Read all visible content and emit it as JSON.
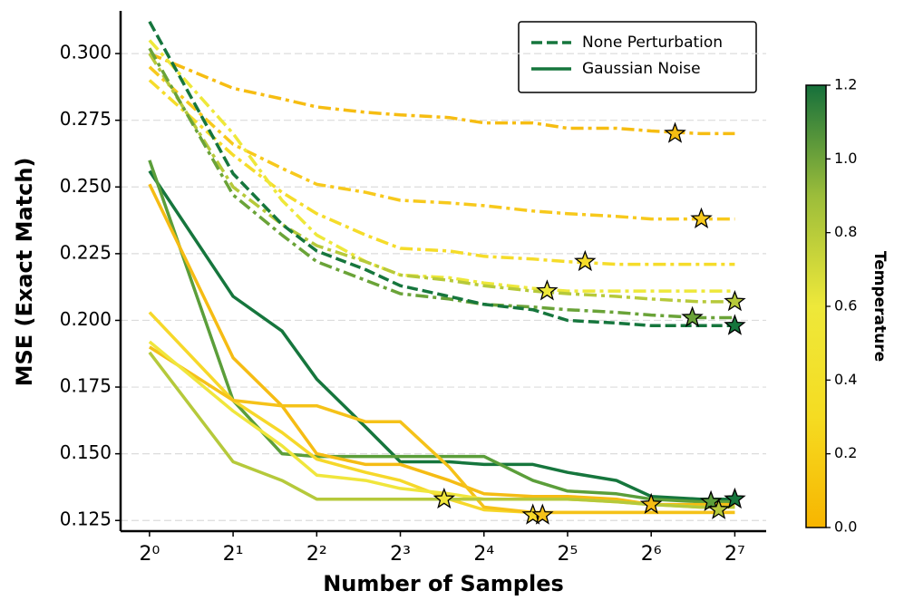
{
  "chart_data": {
    "type": "line",
    "xlabel": "Number of Samples",
    "ylabel": "MSE (Exact Match)",
    "log_x": true,
    "log_base": 2,
    "grid": true,
    "x": [
      1,
      2,
      3,
      4,
      6,
      8,
      12,
      16,
      24,
      32,
      48,
      64,
      96,
      128
    ],
    "xlim": [
      0.787,
      166
    ],
    "xticks": [
      {
        "value": 1,
        "label": "2⁰"
      },
      {
        "value": 2,
        "label": "2¹"
      },
      {
        "value": 4,
        "label": "2²"
      },
      {
        "value": 8,
        "label": "2³"
      },
      {
        "value": 16,
        "label": "2⁴"
      },
      {
        "value": 32,
        "label": "2⁵"
      },
      {
        "value": 64,
        "label": "2⁶"
      },
      {
        "value": 128,
        "label": "2⁷"
      }
    ],
    "ylim": [
      0.121,
      0.316
    ],
    "yticks": [
      0.125,
      {
        "value": 0.15,
        "label": "0.150"
      },
      0.175,
      {
        "value": 0.2,
        "label": "0.200"
      },
      0.225,
      {
        "value": 0.25,
        "label": "0.250"
      },
      0.275,
      {
        "value": 0.3,
        "label": "0.300"
      }
    ],
    "legend": [
      {
        "label": "None Perturbation",
        "style": "dashed",
        "color": "#16763d"
      },
      {
        "label": "Gaussian Noise",
        "style": "solid",
        "color": "#16763d"
      }
    ],
    "series": [
      {
        "color": "#f6bd12",
        "style": "dashdot",
        "values": [
          0.3,
          0.287,
          0.283,
          0.28,
          0.278,
          0.277,
          0.276,
          0.274,
          0.274,
          0.272,
          0.272,
          0.271,
          0.27,
          0.27
        ],
        "marker": {
          "x": 78,
          "y": 0.27
        }
      },
      {
        "color": "#f7c91c",
        "style": "dashdot",
        "values": [
          0.295,
          0.266,
          0.257,
          0.251,
          0.248,
          0.245,
          0.244,
          0.243,
          0.241,
          0.24,
          0.239,
          0.238,
          0.238,
          0.238
        ],
        "marker": {
          "x": 97,
          "y": 0.238
        }
      },
      {
        "color": "#f5dc2a",
        "style": "dashdot",
        "values": [
          0.29,
          0.262,
          0.248,
          0.24,
          0.232,
          0.227,
          0.226,
          0.224,
          0.223,
          0.222,
          0.221,
          0.221,
          0.221,
          0.221
        ],
        "marker": {
          "x": 37,
          "y": 0.222
        }
      },
      {
        "color": "#eee83a",
        "style": "dashdot",
        "values": [
          0.305,
          0.27,
          0.245,
          0.232,
          0.222,
          0.217,
          0.216,
          0.214,
          0.212,
          0.211,
          0.211,
          0.211,
          0.211,
          0.211
        ],
        "marker": {
          "x": 27,
          "y": 0.211
        }
      },
      {
        "color": "#b6c93a",
        "style": "dashdot",
        "values": [
          0.3,
          0.25,
          0.236,
          0.228,
          0.222,
          0.217,
          0.215,
          0.213,
          0.211,
          0.21,
          0.209,
          0.208,
          0.207,
          0.207
        ],
        "marker": {
          "x": 128,
          "y": 0.207
        }
      },
      {
        "color": "#6aa338",
        "style": "dashdot",
        "values": [
          0.302,
          0.247,
          0.232,
          0.222,
          0.215,
          0.21,
          0.208,
          0.206,
          0.205,
          0.204,
          0.203,
          0.202,
          0.201,
          0.201
        ],
        "marker": {
          "x": 90,
          "y": 0.201
        }
      },
      {
        "color": "#16763d",
        "style": "dashed",
        "values": [
          0.312,
          0.255,
          0.236,
          0.226,
          0.219,
          0.213,
          0.209,
          0.206,
          0.204,
          0.2,
          0.199,
          0.198,
          0.198,
          0.198
        ],
        "marker": {
          "x": 128,
          "y": 0.198
        }
      },
      {
        "color": "#16763d",
        "style": "solid",
        "values": [
          0.256,
          0.209,
          0.196,
          0.178,
          0.16,
          0.147,
          0.147,
          0.146,
          0.146,
          0.143,
          0.14,
          0.134,
          0.133,
          0.133
        ],
        "marker": {
          "x": 128,
          "y": 0.133
        }
      },
      {
        "color": "#5b9e3a",
        "style": "solid",
        "values": [
          0.26,
          0.17,
          0.15,
          0.149,
          0.149,
          0.149,
          0.149,
          0.149,
          0.14,
          0.136,
          0.135,
          0.133,
          0.132,
          0.132
        ],
        "marker": {
          "x": 105,
          "y": 0.132
        }
      },
      {
        "color": "#f5bc14",
        "style": "solid",
        "values": [
          0.251,
          0.186,
          0.168,
          0.15,
          0.146,
          0.146,
          0.14,
          0.135,
          0.134,
          0.134,
          0.133,
          0.131,
          0.131,
          0.131
        ],
        "marker": {
          "x": 64,
          "y": 0.131
        }
      },
      {
        "color": "#f6d82a",
        "style": "solid",
        "values": [
          0.203,
          0.17,
          0.158,
          0.148,
          0.143,
          0.14,
          0.133,
          0.129,
          0.128,
          0.128,
          0.128,
          0.128,
          0.128,
          0.128
        ],
        "marker": {
          "x": 24,
          "y": 0.127
        }
      },
      {
        "color": "#f5c219",
        "style": "solid",
        "values": [
          0.19,
          0.17,
          0.168,
          0.168,
          0.162,
          0.162,
          0.145,
          0.13,
          0.128,
          0.128,
          0.128,
          0.128,
          0.128,
          0.128
        ],
        "marker": {
          "x": 26,
          "y": 0.127
        }
      },
      {
        "color": "#f0e63c",
        "style": "solid",
        "values": [
          0.192,
          0.166,
          0.153,
          0.142,
          0.14,
          0.137,
          0.135,
          0.133,
          0.133,
          0.133,
          0.132,
          0.131,
          0.13,
          0.13
        ],
        "marker": {
          "x": 11.5,
          "y": 0.133
        }
      },
      {
        "color": "#b5c93b",
        "style": "solid",
        "values": [
          0.188,
          0.147,
          0.14,
          0.133,
          0.133,
          0.133,
          0.133,
          0.133,
          0.133,
          0.133,
          0.132,
          0.131,
          0.13,
          0.13
        ],
        "marker": {
          "x": 112,
          "y": 0.129
        }
      }
    ],
    "colorbar": {
      "label": "Temperature",
      "lim": [
        0,
        1.2
      ],
      "ticks": [
        {
          "value": 0,
          "label": "0.0"
        },
        {
          "value": 0.2,
          "label": "0.2"
        },
        {
          "value": 0.4,
          "label": "0.4"
        },
        {
          "value": 0.6,
          "label": "0.6"
        },
        {
          "value": 0.8,
          "label": "0.8"
        },
        {
          "value": 1,
          "label": "1.0"
        },
        {
          "value": 1.2,
          "label": "1.2"
        }
      ],
      "colors": [
        "#f7b500",
        "#f5dc22",
        "#eee83a",
        "#9cbd3a",
        "#16703b"
      ]
    }
  }
}
